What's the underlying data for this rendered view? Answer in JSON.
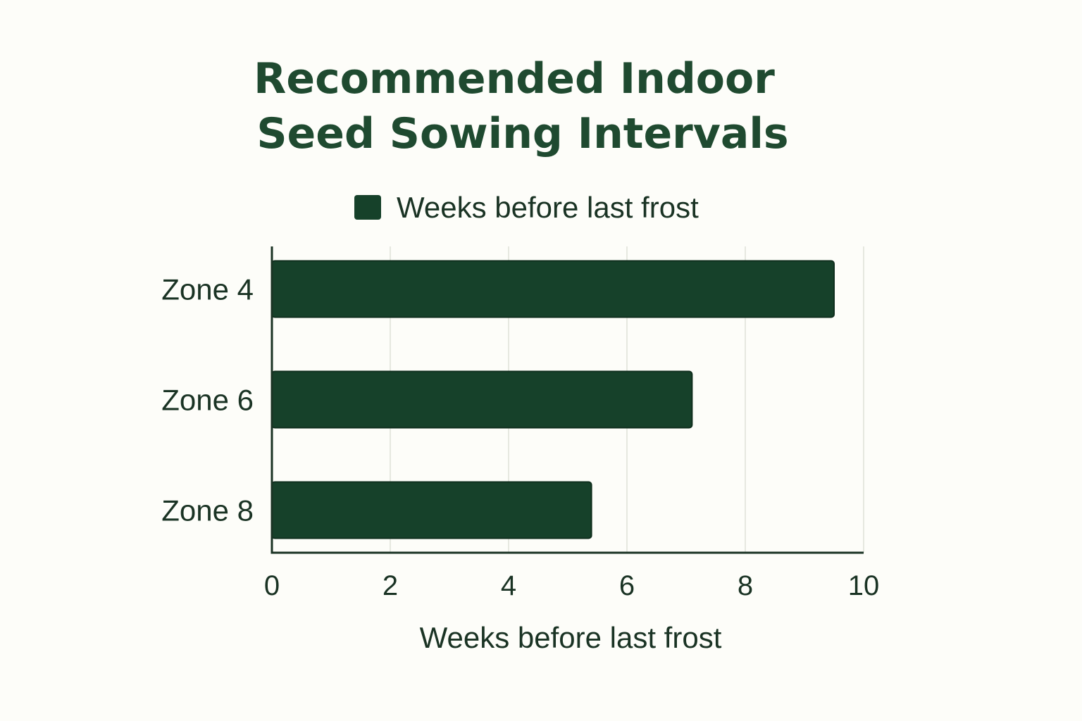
{
  "chart_data": {
    "type": "bar",
    "orientation": "horizontal",
    "title": [
      "Recommended Indoor",
      "Seed Sowing Intervals"
    ],
    "categories": [
      "Zone 4",
      "Zone 6",
      "Zone 8"
    ],
    "series": [
      {
        "name": "Weeks before last frost",
        "values": [
          9.5,
          7.1,
          5.4
        ]
      }
    ],
    "xlabel": "Weeks before last frost",
    "ylabel": "",
    "xlim": [
      0,
      10
    ],
    "xticks": [
      "0",
      "2",
      "4",
      "6",
      "8",
      "10"
    ],
    "grid": "vertical",
    "legend": "top-center",
    "colors": {
      "bar": "#16412a",
      "bar_stroke": "#0f2e1d",
      "title": "#1f4a30",
      "text": "#1a3324",
      "grid": "#e6e8e0",
      "background": "#fdfdf9"
    }
  }
}
